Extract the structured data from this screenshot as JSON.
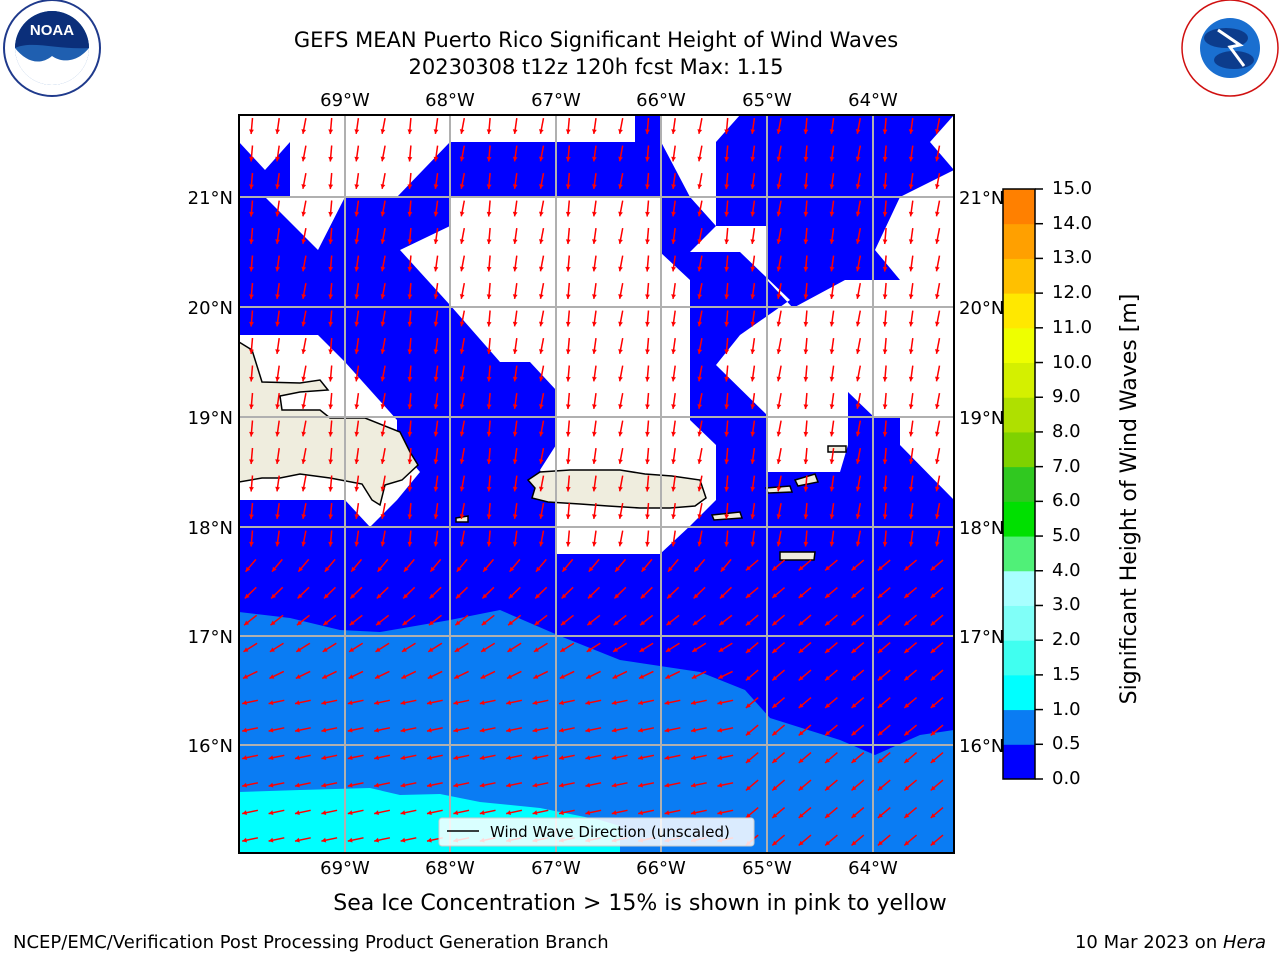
{
  "title_line1": "GEFS MEAN Puerto Rico Significant Height of Wind Waves",
  "title_line2": "20230308 t12z 120h fcst   Max: 1.15",
  "map": {
    "lon_ticks": [
      "69°W",
      "68°W",
      "67°W",
      "66°W",
      "65°W",
      "64°W"
    ],
    "lat_ticks": [
      "21°N",
      "20°N",
      "19°N",
      "18°N",
      "17°N",
      "16°N"
    ],
    "land_color": "#efedde",
    "arrow_color": "#ff0000",
    "legend_label": "Wind Wave Direction (unscaled)"
  },
  "colorbar": {
    "label": "Significant Height of Wind Waves [m]",
    "ticks": [
      "15.0",
      "14.0",
      "13.0",
      "12.0",
      "11.0",
      "10.0",
      "9.0",
      "8.0",
      "7.0",
      "6.0",
      "5.0",
      "4.0",
      "3.0",
      "2.0",
      "1.5",
      "1.0",
      "0.5",
      "0.0"
    ],
    "colors": [
      "#0000ff",
      "#0a7cf3",
      "#00ffff",
      "#40fff0",
      "#80fff8",
      "#a8ffff",
      "#50f078",
      "#00e000",
      "#30c820",
      "#7fd200",
      "#afe000",
      "#d4f000",
      "#eeff00",
      "#ffe800",
      "#ffc000",
      "#ffa000",
      "#ff8000",
      "#ff5000",
      "#ff2800",
      "#ff0000"
    ]
  },
  "ice_note": "Sea Ice Concentration > 15% is shown in pink to yellow",
  "footer_left": "NCEP/EMC/Verification Post Processing Product Generation Branch",
  "footer_right_prefix": "10 Mar 2023 on ",
  "footer_right_host": "Hera",
  "logos": {
    "noaa_text": "NOAA",
    "nws_text": "NATIONAL WEATHER SERVICE"
  }
}
